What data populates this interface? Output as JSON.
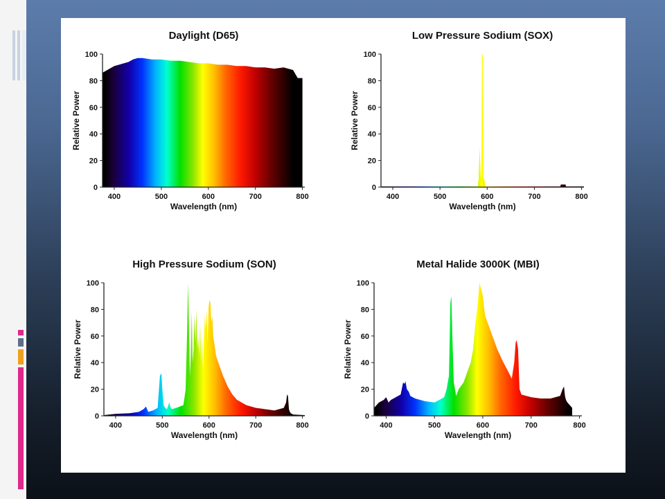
{
  "colors": {
    "slide_gradient_top": "#5c7cab",
    "slide_gradient_bottom": "#0c1118",
    "accent_magenta": "#e0288a",
    "accent_orange": "#f0a020",
    "accent_slate": "#4b6892"
  },
  "chart_data": [
    {
      "type": "area",
      "title": "Daylight (D65)",
      "xlabel": "Wavelength (nm)",
      "ylabel": "Relative Power",
      "xlim": [
        375,
        805
      ],
      "ylim": [
        0,
        100
      ],
      "xticks": [
        400,
        500,
        600,
        700,
        800
      ],
      "yticks": [
        0,
        20,
        40,
        60,
        80,
        100
      ],
      "fill": "spectrum",
      "x": [
        375,
        380,
        390,
        400,
        410,
        420,
        430,
        440,
        450,
        460,
        480,
        500,
        520,
        540,
        560,
        580,
        600,
        620,
        640,
        660,
        680,
        700,
        720,
        740,
        760,
        770,
        780,
        790,
        800
      ],
      "y": [
        86,
        87,
        89,
        91,
        92,
        93,
        94,
        96,
        97,
        97,
        96,
        96,
        95,
        95,
        94,
        93,
        93,
        92,
        92,
        91,
        91,
        90,
        90,
        89,
        90,
        89,
        88,
        82,
        82
      ]
    },
    {
      "type": "area",
      "title": "Low Pressure Sodium (SOX)",
      "xlabel": "Wavelength (nm)",
      "ylabel": "Relative Power",
      "xlim": [
        375,
        805
      ],
      "ylim": [
        0,
        100
      ],
      "xticks": [
        400,
        500,
        600,
        700,
        800
      ],
      "yticks": [
        0,
        20,
        40,
        60,
        80,
        100
      ],
      "fill": "spectrum",
      "x": [
        375,
        580,
        582,
        584,
        586,
        587,
        588,
        589,
        590,
        591,
        592,
        593,
        594,
        596,
        598,
        755,
        756,
        766,
        767,
        805
      ],
      "y": [
        0.5,
        0.5,
        6,
        30,
        10,
        6,
        30,
        100,
        100,
        98,
        8,
        6,
        6,
        0.5,
        0.5,
        0.5,
        2,
        2,
        0.5,
        0.5
      ]
    },
    {
      "type": "area",
      "title": "High Pressure Sodium (SON)",
      "xlabel": "Wavelength (nm)",
      "ylabel": "Relative Power",
      "xlim": [
        375,
        805
      ],
      "ylim": [
        0,
        100
      ],
      "xticks": [
        400,
        500,
        600,
        700,
        800
      ],
      "yticks": [
        0,
        20,
        40,
        60,
        80,
        100
      ],
      "fill": "spectrum",
      "x": [
        375,
        400,
        430,
        450,
        460,
        465,
        470,
        480,
        490,
        495,
        498,
        500,
        503,
        506,
        510,
        515,
        517,
        520,
        530,
        545,
        548,
        550,
        553,
        555,
        557,
        559,
        561,
        563,
        565,
        567,
        569,
        571,
        573,
        575,
        577,
        579,
        581,
        583,
        585,
        587,
        589,
        591,
        593,
        595,
        597,
        599,
        601,
        603,
        605,
        607,
        609,
        611,
        615,
        620,
        630,
        640,
        650,
        660,
        680,
        700,
        720,
        740,
        760,
        765,
        767,
        769,
        771,
        773,
        775,
        780,
        805
      ],
      "y": [
        0.5,
        1.5,
        2,
        3,
        5,
        7,
        3,
        4,
        6,
        30,
        32,
        20,
        8,
        6,
        5,
        10,
        7,
        5,
        6,
        8,
        15,
        20,
        60,
        100,
        70,
        30,
        45,
        78,
        40,
        50,
        75,
        55,
        80,
        50,
        60,
        45,
        70,
        40,
        60,
        35,
        55,
        75,
        65,
        80,
        55,
        82,
        87,
        85,
        70,
        75,
        60,
        55,
        45,
        40,
        30,
        22,
        16,
        12,
        8,
        6,
        5,
        4,
        6,
        10,
        16,
        15,
        5,
        3,
        2,
        1,
        0.5
      ]
    },
    {
      "type": "area",
      "title": "Metal Halide 3000K (MBI)",
      "xlabel": "Wavelength (nm)",
      "ylabel": "Relative Power",
      "xlim": [
        375,
        805
      ],
      "ylim": [
        0,
        100
      ],
      "xticks": [
        400,
        500,
        600,
        700,
        800
      ],
      "yticks": [
        0,
        20,
        40,
        60,
        80,
        100
      ],
      "fill": "spectrum",
      "x": [
        375,
        385,
        395,
        400,
        405,
        410,
        420,
        430,
        435,
        438,
        440,
        443,
        447,
        450,
        460,
        480,
        500,
        520,
        525,
        530,
        533,
        535,
        537,
        540,
        545,
        550,
        560,
        565,
        570,
        575,
        580,
        585,
        590,
        593,
        595,
        597,
        600,
        603,
        605,
        610,
        620,
        630,
        640,
        650,
        660,
        665,
        668,
        670,
        673,
        676,
        680,
        690,
        700,
        720,
        740,
        760,
        765,
        768,
        770,
        772,
        775,
        780,
        785
      ],
      "y": [
        6,
        10,
        12,
        14,
        10,
        12,
        14,
        16,
        25,
        24,
        26,
        20,
        18,
        15,
        13,
        11,
        10,
        14,
        20,
        30,
        85,
        90,
        60,
        25,
        15,
        20,
        25,
        30,
        35,
        40,
        50,
        70,
        85,
        100,
        97,
        95,
        90,
        80,
        75,
        70,
        60,
        50,
        42,
        35,
        28,
        40,
        55,
        57,
        50,
        20,
        16,
        15,
        14,
        13,
        13,
        15,
        20,
        22,
        15,
        12,
        10,
        8,
        6
      ]
    }
  ]
}
